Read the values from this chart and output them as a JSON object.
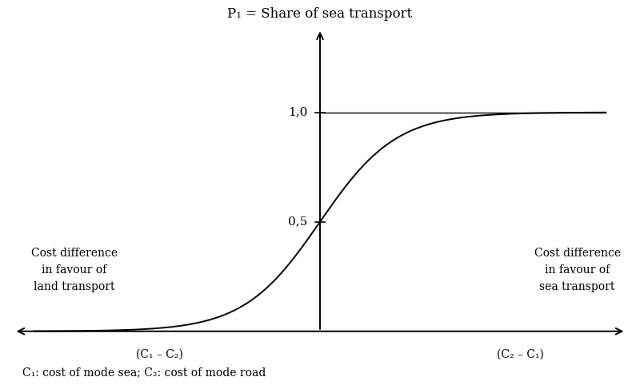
{
  "title": "P₁ = Share of sea transport",
  "ylabel_05": "0,5",
  "ylabel_10": "1,0",
  "left_label_line1": "Cost difference",
  "left_label_line2": "in favour of",
  "left_label_line3": "land transport",
  "right_label_line1": "Cost difference",
  "right_label_line2": "in favour of",
  "right_label_line3": "sea transport",
  "x_left_label": "(C₁ – C₂)",
  "x_right_label": "(C₂ – C₁)",
  "footnote": "C₁: cost of mode sea; C₂: cost of mode road",
  "curve_color": "#000000",
  "axis_color": "#000000",
  "background_color": "#ffffff",
  "sigmoid_k": 1.5,
  "title_fontsize": 12,
  "label_fontsize": 10,
  "tick_fontsize": 11,
  "footnote_fontsize": 10
}
